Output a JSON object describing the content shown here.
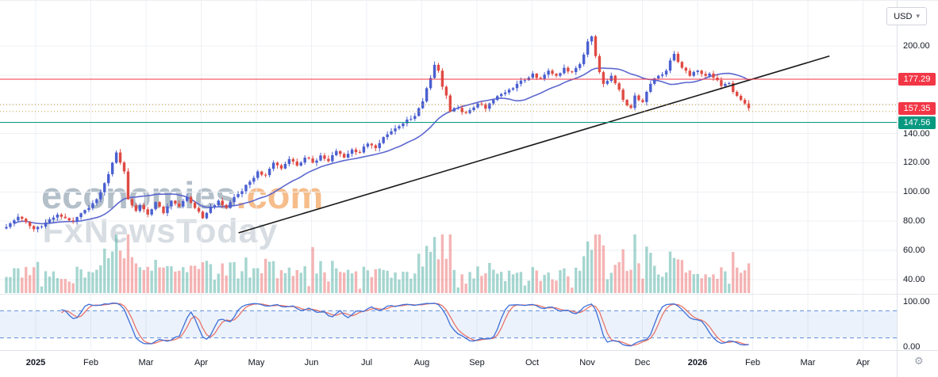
{
  "toolbar": {
    "currency_label": "USD"
  },
  "watermark": {
    "line1_main": "economies",
    "line1_suffix": ".com",
    "line2": "FxNewsToday"
  },
  "price_axis": {
    "ticks": [
      {
        "label": "200.00",
        "price": 200
      },
      {
        "label": "140.00",
        "price": 140
      },
      {
        "label": "120.00",
        "price": 120
      },
      {
        "label": "100.00",
        "price": 100
      },
      {
        "label": "80.00",
        "price": 80
      },
      {
        "label": "60.00",
        "price": 60
      },
      {
        "label": "40.00",
        "price": 40
      }
    ],
    "osc_ticks": [
      {
        "label": "100.00",
        "value": 100
      },
      {
        "label": "0.00",
        "value": 0
      }
    ]
  },
  "time_axis": {
    "labels": [
      "2025",
      "Feb",
      "Mar",
      "Apr",
      "May",
      "Jun",
      "Jul",
      "Aug",
      "Sep",
      "Oct",
      "Nov",
      "Dec",
      "2026",
      "Feb",
      "Mar",
      "Apr"
    ]
  },
  "chart_data": {
    "type": "candlestick",
    "currency": "USD",
    "x_range": [
      "Jan 2025",
      "Apr 2026"
    ],
    "visible_price_range": [
      30,
      210
    ],
    "gridlines_price": [
      40,
      60,
      80,
      100,
      120,
      140,
      160,
      180,
      200
    ],
    "candles_count": 190,
    "close_keyframes": [
      [
        0,
        76
      ],
      [
        3,
        83
      ],
      [
        7,
        74.5
      ],
      [
        10,
        79
      ],
      [
        13,
        84.5
      ],
      [
        17,
        80
      ],
      [
        21,
        89
      ],
      [
        23,
        95
      ],
      [
        25,
        106
      ],
      [
        27,
        120
      ],
      [
        28,
        127
      ],
      [
        30,
        114
      ],
      [
        31,
        95
      ],
      [
        33,
        87
      ],
      [
        34,
        91
      ],
      [
        36,
        84.5
      ],
      [
        38,
        93
      ],
      [
        40,
        85.5
      ],
      [
        42,
        94
      ],
      [
        44,
        90
      ],
      [
        46,
        96.5
      ],
      [
        48,
        89
      ],
      [
        50,
        82
      ],
      [
        52,
        90
      ],
      [
        54,
        94
      ],
      [
        56,
        89
      ],
      [
        58,
        96.5
      ],
      [
        60,
        100.5
      ],
      [
        62,
        107
      ],
      [
        64,
        114
      ],
      [
        66,
        111.5
      ],
      [
        68,
        120
      ],
      [
        70,
        116
      ],
      [
        72,
        122.5
      ],
      [
        74,
        118
      ],
      [
        76,
        123.5
      ],
      [
        78,
        120
      ],
      [
        80,
        125
      ],
      [
        82,
        121
      ],
      [
        84,
        128
      ],
      [
        86,
        123.5
      ],
      [
        88,
        129
      ],
      [
        90,
        127
      ],
      [
        92,
        133
      ],
      [
        94,
        130
      ],
      [
        96,
        137.5
      ],
      [
        98,
        141.5
      ],
      [
        100,
        145
      ],
      [
        102,
        149.5
      ],
      [
        104,
        152
      ],
      [
        106,
        162
      ],
      [
        107,
        171
      ],
      [
        108,
        178
      ],
      [
        109,
        187
      ],
      [
        110,
        183
      ],
      [
        111,
        172
      ],
      [
        112,
        166
      ],
      [
        113,
        155
      ],
      [
        115,
        157.5
      ],
      [
        117,
        154
      ],
      [
        118,
        156
      ],
      [
        120,
        160.5
      ],
      [
        122,
        157
      ],
      [
        124,
        163
      ],
      [
        126,
        167
      ],
      [
        128,
        170
      ],
      [
        130,
        174
      ],
      [
        132,
        176.5
      ],
      [
        134,
        181
      ],
      [
        136,
        177.5
      ],
      [
        138,
        183
      ],
      [
        140,
        179.5
      ],
      [
        142,
        185
      ],
      [
        144,
        182
      ],
      [
        146,
        187.5
      ],
      [
        147,
        194
      ],
      [
        148,
        203
      ],
      [
        149,
        206.5
      ],
      [
        150,
        193
      ],
      [
        151,
        182
      ],
      [
        152,
        174
      ],
      [
        154,
        179.5
      ],
      [
        156,
        170
      ],
      [
        157,
        163
      ],
      [
        159,
        157.5
      ],
      [
        160,
        166
      ],
      [
        162,
        161.5
      ],
      [
        163,
        168.5
      ],
      [
        164,
        174
      ],
      [
        166,
        179.5
      ],
      [
        168,
        183
      ],
      [
        169,
        190
      ],
      [
        170,
        194.5
      ],
      [
        172,
        185
      ],
      [
        174,
        179.5
      ],
      [
        176,
        183
      ],
      [
        178,
        179.5
      ],
      [
        179,
        181
      ],
      [
        181,
        176.5
      ],
      [
        182,
        172.5
      ],
      [
        184,
        174.5
      ],
      [
        185,
        168.5
      ],
      [
        187,
        163
      ],
      [
        188,
        160.5
      ],
      [
        189,
        157.35
      ]
    ],
    "levels": [
      {
        "label": "177.29",
        "price": 177.29,
        "color": "#f23645",
        "line": true,
        "role": "resistance"
      },
      {
        "label": "157.35",
        "price": 157.35,
        "color": "#f23645",
        "line": false,
        "role": "last-price"
      },
      {
        "label": "147.56",
        "price": 147.56,
        "color": "#089981",
        "line": true,
        "role": "support"
      }
    ],
    "dotted_levels": [
      159.6,
      155.1
    ],
    "trendline": {
      "x1_frac": 0.266,
      "price1": 72,
      "x2_frac": 0.925,
      "price2": 193
    },
    "ma": {
      "type": "SMA",
      "period": 20,
      "color": "#5d68cf"
    },
    "indicators": {
      "stochastic": {
        "k_period": 14,
        "smooth": 3,
        "d_period": 3,
        "overbought": 80,
        "oversold": 20,
        "range": [
          0,
          100
        ]
      }
    },
    "volume_pane": {
      "present": true
    },
    "colors": {
      "grid": "#eef0f4",
      "candle_up": "#4a5fd0",
      "candle_down": "#e04a43",
      "trendline": "#1a1a1a",
      "volume_up": "rgba(42,157,143,0.42)",
      "volume_down": "rgba(231,76,76,0.42)",
      "stoch_k": "#3d6fd8",
      "stoch_d": "#e8756a",
      "stoch_level": "#5c8fdb",
      "stoch_band": "rgba(70,130,220,0.10)",
      "dotted_level": "#c8a44a"
    }
  }
}
